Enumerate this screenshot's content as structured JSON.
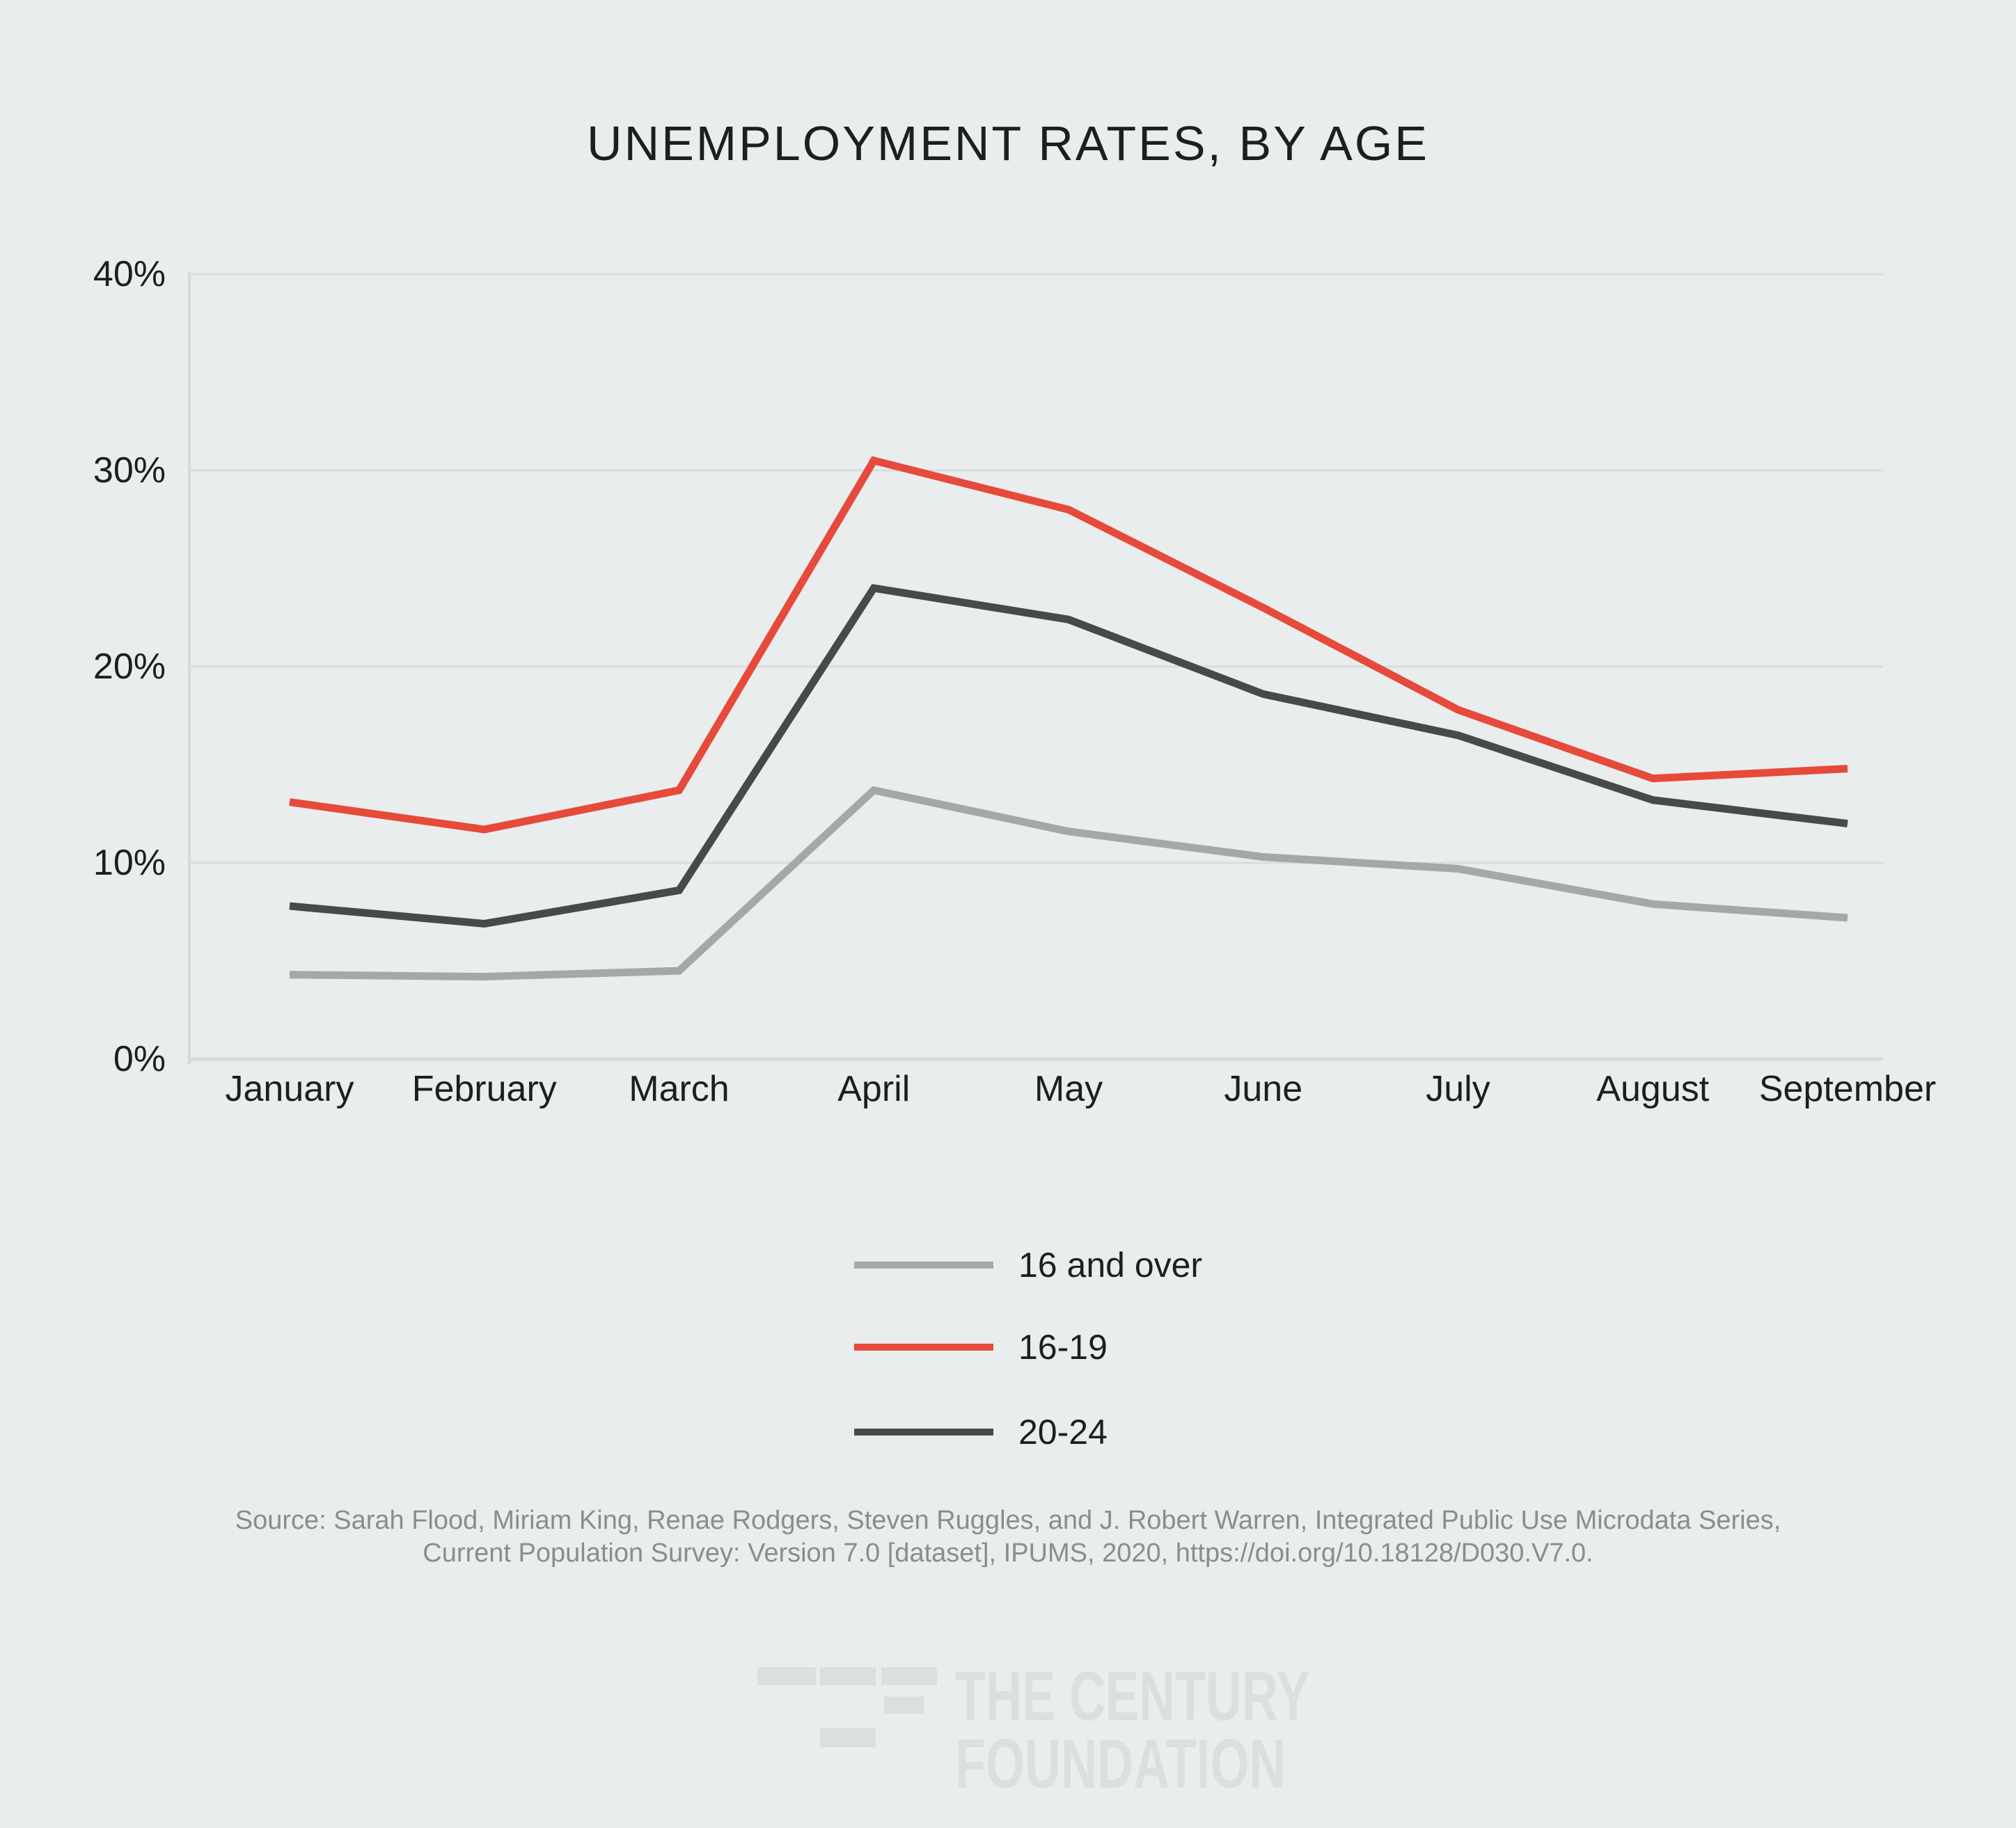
{
  "title": "UNEMPLOYMENT RATES, BY AGE",
  "chart_data": {
    "type": "line",
    "title": "UNEMPLOYMENT RATES, BY AGE",
    "categories": [
      "January",
      "February",
      "March",
      "April",
      "May",
      "June",
      "July",
      "August",
      "September"
    ],
    "series": [
      {
        "name": "16 and over",
        "color": "#A6A7A8",
        "values": [
          4.3,
          4.2,
          4.5,
          13.7,
          11.6,
          10.3,
          9.7,
          7.9,
          7.2
        ]
      },
      {
        "name": "16-19",
        "color": "#E64A3B",
        "values": [
          13.1,
          11.7,
          13.7,
          30.5,
          28.0,
          23.0,
          17.8,
          14.3,
          14.8
        ]
      },
      {
        "name": "20-24",
        "color": "#47494B",
        "values": [
          7.8,
          6.9,
          8.6,
          24.0,
          22.4,
          18.6,
          16.5,
          13.2,
          12.0
        ]
      }
    ],
    "xlabel": "",
    "ylabel": "",
    "ylim": [
      0,
      40
    ],
    "yticks": [
      {
        "value": 0,
        "label": "0%"
      },
      {
        "value": 10,
        "label": "10%"
      },
      {
        "value": 20,
        "label": "20%"
      },
      {
        "value": 30,
        "label": "30%"
      },
      {
        "value": 40,
        "label": "40%"
      }
    ],
    "grid": true,
    "legend_position": "below-chart",
    "colors": {
      "background": "#EAEDEE",
      "gridline": "#D9DCDD",
      "axis_line": "#D6D9DA",
      "axis_text": "#1D1E20",
      "source_text": "#8A8D8E",
      "logo": "#DCDFE0"
    }
  },
  "source": {
    "line1": "Source: Sarah Flood, Miriam King, Renae Rodgers, Steven Ruggles, and J. Robert Warren, Integrated Public Use Microdata Series,",
    "line2": "Current Population Survey: Version 7.0 [dataset], IPUMS, 2020, https://doi.org/10.18128/D030.V7.0."
  },
  "logo": {
    "name_line1": "THE CENTURY",
    "name_line2": "FOUNDATION"
  }
}
